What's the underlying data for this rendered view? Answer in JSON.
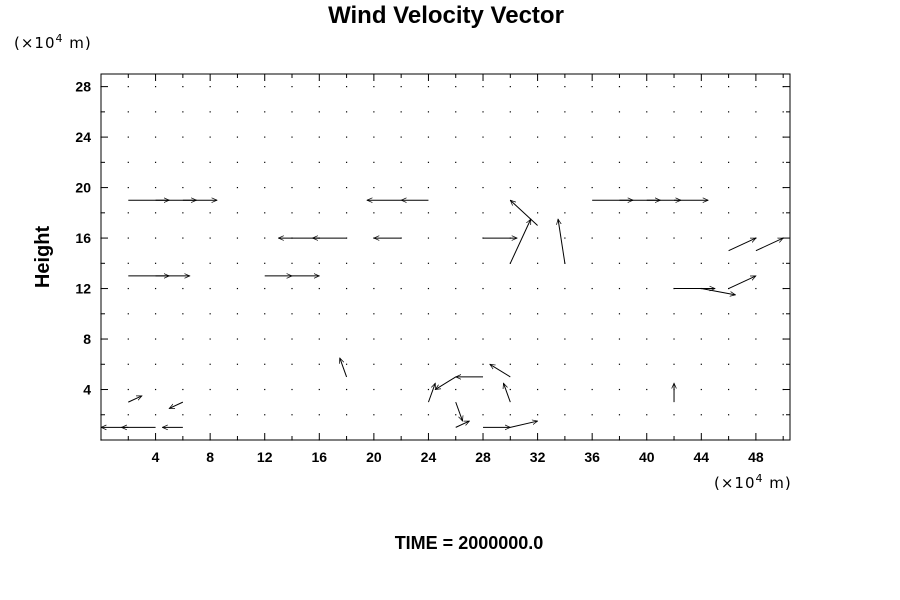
{
  "chart_data": {
    "type": "vector_field",
    "title": "Wind Velocity Vector",
    "ylabel": "Height",
    "xlabel": "",
    "x_unit": {
      "prefix": "(×10",
      "exp": "4",
      "suffix": " m)"
    },
    "y_unit": {
      "prefix": "(×10",
      "exp": "4",
      "suffix": " m)"
    },
    "x_ticks": [
      "4",
      "8",
      "12",
      "16",
      "20",
      "24",
      "28",
      "32",
      "36",
      "40",
      "44",
      "48"
    ],
    "y_ticks": [
      "4",
      "8",
      "12",
      "16",
      "20",
      "24",
      "28"
    ],
    "xlim": [
      0,
      50.5
    ],
    "ylim": [
      0,
      29
    ],
    "grid": false,
    "x_grid": [
      0,
      50,
      2
    ],
    "y_grid": [
      0,
      28,
      2
    ],
    "vectors": [
      {
        "x": 2,
        "y": 1,
        "u": -2,
        "v": 0
      },
      {
        "x": 4,
        "y": 1,
        "u": -2.5,
        "v": 0
      },
      {
        "x": 6,
        "y": 1,
        "u": -1.5,
        "v": 0
      },
      {
        "x": 2,
        "y": 3,
        "u": 1,
        "v": 0.5
      },
      {
        "x": 6,
        "y": 3,
        "u": -1,
        "v": -0.5
      },
      {
        "x": 26,
        "y": 1,
        "u": 1,
        "v": 0.5
      },
      {
        "x": 28,
        "y": 1,
        "u": 2,
        "v": 0
      },
      {
        "x": 30,
        "y": 1,
        "u": 2,
        "v": 0.5
      },
      {
        "x": 26,
        "y": 3,
        "u": 0.5,
        "v": -1.5
      },
      {
        "x": 30,
        "y": 3,
        "u": -0.5,
        "v": 1.5
      },
      {
        "x": 28,
        "y": 5,
        "u": -2,
        "v": 0
      },
      {
        "x": 26,
        "y": 5,
        "u": -1.5,
        "v": -1
      },
      {
        "x": 30,
        "y": 5,
        "u": -1.5,
        "v": 1
      },
      {
        "x": 18,
        "y": 5,
        "u": -0.5,
        "v": 1.5
      },
      {
        "x": 24,
        "y": 3,
        "u": 0.5,
        "v": 1.5
      },
      {
        "x": 42,
        "y": 3,
        "u": 0,
        "v": 1.5
      },
      {
        "x": 2,
        "y": 13,
        "u": 3,
        "v": 0
      },
      {
        "x": 4,
        "y": 13,
        "u": 2.5,
        "v": 0
      },
      {
        "x": 12,
        "y": 13,
        "u": 2,
        "v": 0
      },
      {
        "x": 14,
        "y": 13,
        "u": 2,
        "v": 0
      },
      {
        "x": 42,
        "y": 12,
        "u": 3,
        "v": 0
      },
      {
        "x": 44,
        "y": 12,
        "u": 2.5,
        "v": -0.5
      },
      {
        "x": 46,
        "y": 12,
        "u": 2,
        "v": 1
      },
      {
        "x": 16,
        "y": 16,
        "u": -3,
        "v": 0
      },
      {
        "x": 18,
        "y": 16,
        "u": -2.5,
        "v": 0
      },
      {
        "x": 22,
        "y": 16,
        "u": -2,
        "v": 0
      },
      {
        "x": 28,
        "y": 16,
        "u": 2.5,
        "v": 0
      },
      {
        "x": 46,
        "y": 15,
        "u": 2,
        "v": 1
      },
      {
        "x": 48,
        "y": 15,
        "u": 2,
        "v": 1
      },
      {
        "x": 2,
        "y": 19,
        "u": 3,
        "v": 0
      },
      {
        "x": 4,
        "y": 19,
        "u": 3,
        "v": 0
      },
      {
        "x": 6,
        "y": 19,
        "u": 2.5,
        "v": 0
      },
      {
        "x": 22,
        "y": 19,
        "u": -2.5,
        "v": 0
      },
      {
        "x": 24,
        "y": 19,
        "u": -2,
        "v": 0
      },
      {
        "x": 36,
        "y": 19,
        "u": 3,
        "v": 0
      },
      {
        "x": 38,
        "y": 19,
        "u": 3,
        "v": 0
      },
      {
        "x": 40,
        "y": 19,
        "u": 2.5,
        "v": 0
      },
      {
        "x": 42,
        "y": 19,
        "u": 2.5,
        "v": 0
      },
      {
        "x": 30,
        "y": 14,
        "u": 1.5,
        "v": 3.5
      },
      {
        "x": 34,
        "y": 14,
        "u": -0.5,
        "v": 3.5
      },
      {
        "x": 32,
        "y": 17,
        "u": -2,
        "v": 2
      }
    ]
  },
  "footer": {
    "time_label": "TIME = 2000000.0"
  }
}
